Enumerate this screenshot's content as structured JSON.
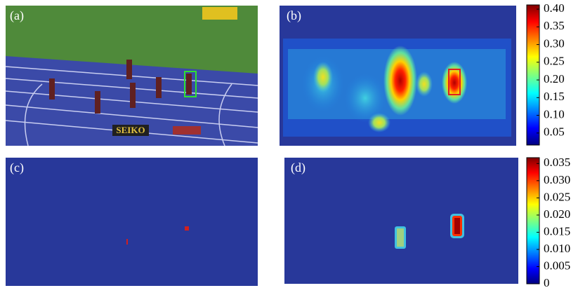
{
  "panels": [
    {
      "label": "(a)",
      "sign": "SEIKO"
    },
    {
      "label": "(b)",
      "colorbar": {
        "lim": [
          0.016,
          0.412
        ],
        "ticks": [
          {
            "value": 0.4,
            "label": "0.40"
          },
          {
            "value": 0.35,
            "label": "0.35"
          },
          {
            "value": 0.3,
            "label": "0.30"
          },
          {
            "value": 0.25,
            "label": "0.25"
          },
          {
            "value": 0.2,
            "label": "0.20"
          },
          {
            "value": 0.15,
            "label": "0.15"
          },
          {
            "value": 0.1,
            "label": "0.10"
          },
          {
            "value": 0.05,
            "label": "0.05"
          }
        ]
      }
    },
    {
      "label": "(c)"
    },
    {
      "label": "(d)",
      "colorbar": {
        "lim": [
          0,
          0.0367
        ],
        "ticks": [
          0.035,
          {
            "value": 0.03,
            "label": "0.030"
          },
          0.025,
          {
            "value": 0.02,
            "label": "0.020"
          },
          0.015,
          {
            "value": 0.01,
            "label": "0.010"
          },
          0.005,
          0
        ]
      }
    }
  ]
}
